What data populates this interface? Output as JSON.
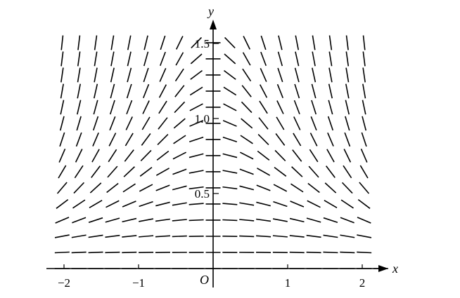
{
  "chart_data": {
    "type": "slope_field",
    "xlabel": "x",
    "ylabel": "y",
    "origin_label": "O",
    "xlim": [
      -2.1,
      2.3
    ],
    "ylim": [
      0,
      1.7
    ],
    "x_ticks": [
      {
        "value": -2,
        "label": "−2"
      },
      {
        "value": -1,
        "label": "−1"
      },
      {
        "value": 1,
        "label": "1"
      },
      {
        "value": 2,
        "label": "2"
      }
    ],
    "y_ticks": [
      {
        "value": 0.5,
        "label": "0.5"
      },
      {
        "value": 1.0,
        "label": "1.0"
      },
      {
        "value": 1.5,
        "label": "1.5"
      }
    ],
    "grid": false,
    "slope_rule": "slope = -x*y^2 (zero on the x-axis and y-axis, positive left, negative right, steeper upward)",
    "line_color": "#000000"
  }
}
